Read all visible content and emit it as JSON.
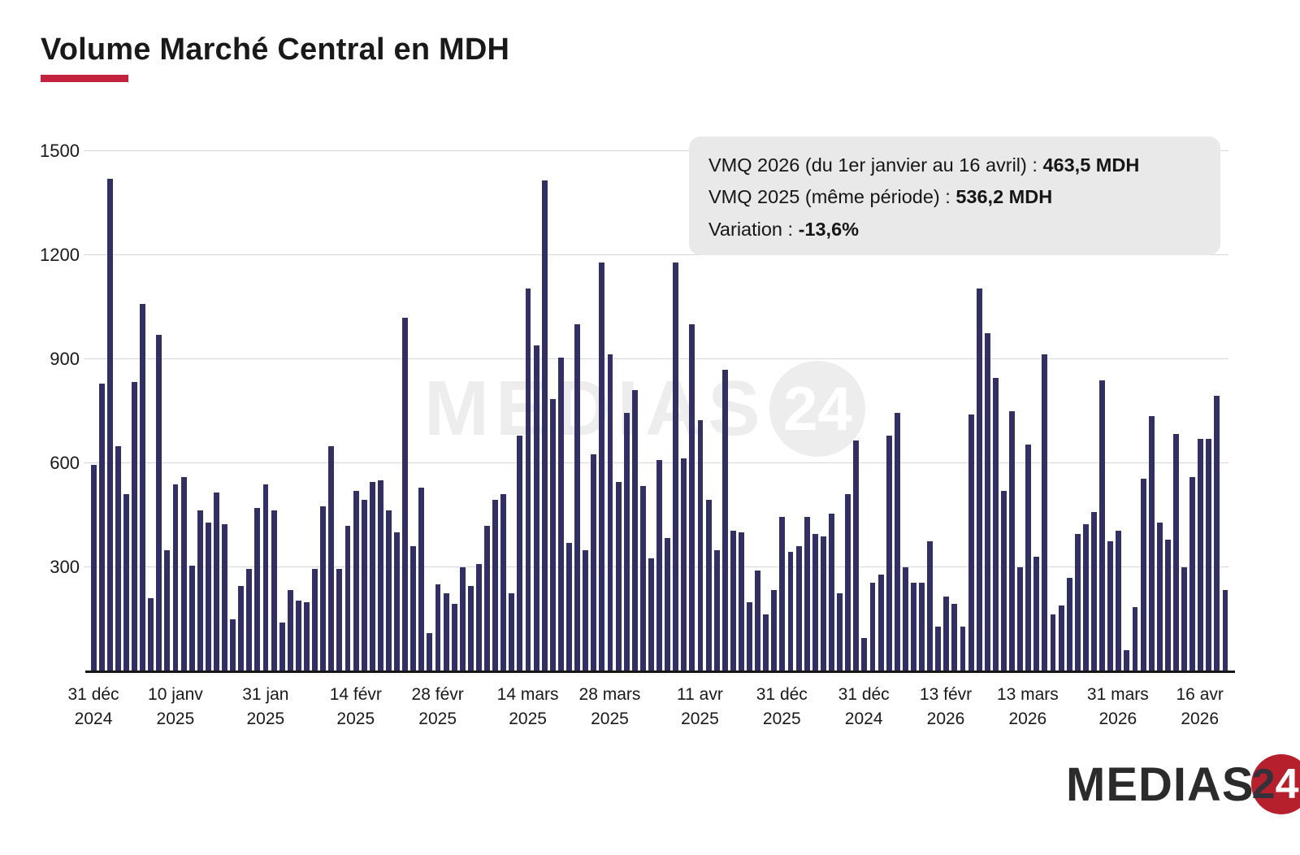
{
  "page": {
    "title": "Volume Marché Central en MDH"
  },
  "annotation": {
    "lines": [
      {
        "label": "VMQ 2026 (du 1er janvier au 16 avril) : ",
        "value": "463,5 MDH"
      },
      {
        "label": "VMQ 2025 (même période) : ",
        "value": "536,2 MDH"
      },
      {
        "label": "Variation : ",
        "value": "-13,6%"
      }
    ]
  },
  "watermark": {
    "text": "MEDIAS",
    "badge": "24"
  },
  "logo": {
    "text": "MEDIAS",
    "badge_digit_left": "2",
    "badge_digit_right": "4"
  },
  "colors": {
    "bar": "#322f63",
    "accent_red": "#c2223e",
    "grid": "#d7d7d7",
    "axis": "#161616",
    "annotation_bg": "#e9e9e9",
    "watermark_gray": "#ededed",
    "logo_red": "#b5202c"
  },
  "chart_data": {
    "type": "bar",
    "title": "Volume Marché Central en MDH",
    "xlabel": "",
    "ylabel": "",
    "unit": "MDH",
    "ylim": [
      0,
      1500
    ],
    "yticks": [
      300,
      600,
      900,
      1200,
      1500
    ],
    "grid": true,
    "legend": false,
    "x_tick_labels": [
      {
        "date": "31 déc",
        "year": "2024",
        "bar_index": 0
      },
      {
        "date": "10 janv",
        "year": "2025",
        "bar_index": 10
      },
      {
        "date": "31 jan",
        "year": "2025",
        "bar_index": 21
      },
      {
        "date": "14 févr",
        "year": "2025",
        "bar_index": 32
      },
      {
        "date": "28 févr",
        "year": "2025",
        "bar_index": 42
      },
      {
        "date": "14 mars",
        "year": "2025",
        "bar_index": 53
      },
      {
        "date": "28 mars",
        "year": "2025",
        "bar_index": 63
      },
      {
        "date": "11 avr",
        "year": "2025",
        "bar_index": 74
      },
      {
        "date": "31 déc",
        "year": "2025",
        "bar_index": 84
      },
      {
        "date": "31 déc",
        "year": "2024",
        "bar_index": 94
      },
      {
        "date": "13 févr",
        "year": "2026",
        "bar_index": 104
      },
      {
        "date": "13 mars",
        "year": "2026",
        "bar_index": 114
      },
      {
        "date": "31 mars",
        "year": "2026",
        "bar_index": 125
      },
      {
        "date": "16 avr",
        "year": "2026",
        "bar_index": 135
      }
    ],
    "values": [
      595,
      830,
      1420,
      650,
      510,
      835,
      1060,
      210,
      970,
      350,
      540,
      560,
      305,
      465,
      430,
      515,
      425,
      150,
      245,
      295,
      470,
      540,
      465,
      140,
      235,
      205,
      200,
      295,
      475,
      650,
      295,
      420,
      520,
      495,
      545,
      550,
      465,
      400,
      1020,
      360,
      530,
      110,
      250,
      225,
      195,
      300,
      245,
      310,
      420,
      495,
      510,
      225,
      680,
      1105,
      940,
      1415,
      785,
      905,
      370,
      1000,
      350,
      625,
      1180,
      915,
      545,
      745,
      810,
      535,
      325,
      610,
      385,
      1180,
      615,
      1000,
      725,
      495,
      350,
      870,
      405,
      400,
      200,
      290,
      165,
      235,
      445,
      345,
      360,
      445,
      395,
      390,
      455,
      225,
      510,
      665,
      95,
      255,
      280,
      680,
      745,
      300,
      255,
      255,
      375,
      130,
      215,
      195,
      130,
      740,
      1105,
      975,
      845,
      520,
      750,
      300,
      655,
      330,
      915,
      165,
      190,
      270,
      395,
      425,
      460,
      840,
      375,
      405,
      60,
      185,
      555,
      735,
      430,
      380,
      685,
      300,
      560,
      670,
      670,
      795,
      235
    ]
  }
}
